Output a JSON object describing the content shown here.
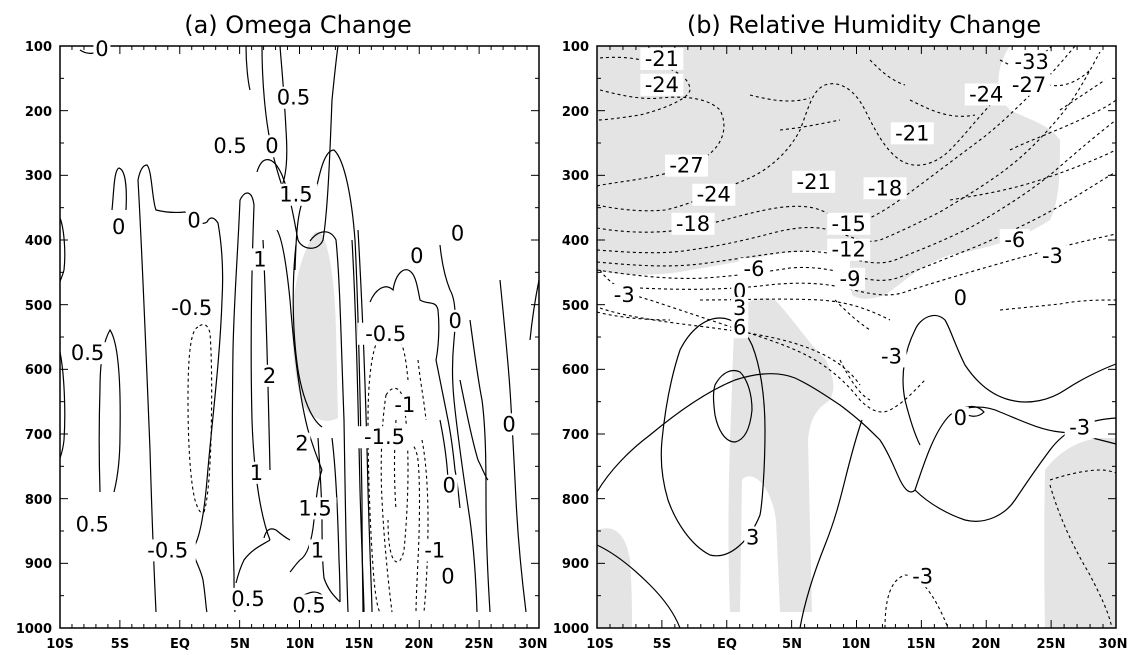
{
  "chart_data": [
    {
      "type": "contour",
      "title": "(a) Omega Change",
      "x_tick_labels": [
        "10S",
        "5S",
        "EQ",
        "5N",
        "10N",
        "15N",
        "20N",
        "25N",
        "30N"
      ],
      "x_range": [
        -10,
        30
      ],
      "y_tick_labels": [
        "100",
        "200",
        "300",
        "400",
        "500",
        "600",
        "700",
        "800",
        "900",
        "1000"
      ],
      "y_range": [
        100,
        1000
      ],
      "y_inverted": true,
      "contour_labels": [
        {
          "text": "0",
          "x": -6.5,
          "y": 105
        },
        {
          "text": "0.5",
          "x": 9.5,
          "y": 180
        },
        {
          "text": "0.5",
          "x": 4.2,
          "y": 255
        },
        {
          "text": "0",
          "x": 7.7,
          "y": 255
        },
        {
          "text": "1.5",
          "x": 9.7,
          "y": 330
        },
        {
          "text": "0",
          "x": -5.1,
          "y": 380
        },
        {
          "text": "0",
          "x": 1.2,
          "y": 370
        },
        {
          "text": "1",
          "x": 6.7,
          "y": 430
        },
        {
          "text": "-0.5",
          "x": 1.0,
          "y": 505
        },
        {
          "text": "0",
          "x": 19.8,
          "y": 425
        },
        {
          "text": "0",
          "x": 23.2,
          "y": 390
        },
        {
          "text": "0.5",
          "x": -7.7,
          "y": 575
        },
        {
          "text": "0",
          "x": 23.0,
          "y": 525
        },
        {
          "text": "-0.5",
          "x": 17.2,
          "y": 545
        },
        {
          "text": "2",
          "x": 7.5,
          "y": 610
        },
        {
          "text": "-1",
          "x": 18.8,
          "y": 655
        },
        {
          "text": "0",
          "x": 27.5,
          "y": 685
        },
        {
          "text": "-1.5",
          "x": 17.1,
          "y": 705
        },
        {
          "text": "2",
          "x": 10.2,
          "y": 715
        },
        {
          "text": "0",
          "x": 22.5,
          "y": 780
        },
        {
          "text": "1",
          "x": 6.4,
          "y": 760
        },
        {
          "text": "1.5",
          "x": 11.3,
          "y": 815
        },
        {
          "text": "0.5",
          "x": -7.3,
          "y": 840
        },
        {
          "text": "-0.5",
          "x": -1.0,
          "y": 880
        },
        {
          "text": "1",
          "x": 11.5,
          "y": 880
        },
        {
          "text": "-1",
          "x": 21.3,
          "y": 880
        },
        {
          "text": "0",
          "x": 22.4,
          "y": 920
        },
        {
          "text": "0.5",
          "x": 5.7,
          "y": 955
        },
        {
          "text": "0.5",
          "x": 10.8,
          "y": 965
        }
      ]
    },
    {
      "type": "contour",
      "title": "(b) Relative Humidity Change",
      "x_tick_labels": [
        "10S",
        "5S",
        "EQ",
        "5N",
        "10N",
        "15N",
        "20N",
        "25N",
        "30N"
      ],
      "x_range": [
        -10,
        30
      ],
      "y_tick_labels": [
        "100",
        "200",
        "300",
        "400",
        "500",
        "600",
        "700",
        "800",
        "900",
        "1000"
      ],
      "y_range": [
        100,
        1000
      ],
      "y_inverted": true,
      "contour_labels": [
        {
          "text": "-21",
          "x": -5.0,
          "y": 120
        },
        {
          "text": "-24",
          "x": -5.0,
          "y": 160
        },
        {
          "text": "-33",
          "x": 23.5,
          "y": 125
        },
        {
          "text": "-27",
          "x": 23.3,
          "y": 160
        },
        {
          "text": "-24",
          "x": 20.0,
          "y": 175
        },
        {
          "text": "-21",
          "x": 14.3,
          "y": 235
        },
        {
          "text": "-27",
          "x": -3.1,
          "y": 285
        },
        {
          "text": "-21",
          "x": 6.7,
          "y": 310
        },
        {
          "text": "-18",
          "x": 12.2,
          "y": 320
        },
        {
          "text": "-24",
          "x": -1.0,
          "y": 330
        },
        {
          "text": "-18",
          "x": -2.6,
          "y": 375
        },
        {
          "text": "-15",
          "x": 9.4,
          "y": 375
        },
        {
          "text": "-6",
          "x": 22.2,
          "y": 400
        },
        {
          "text": "-12",
          "x": 9.4,
          "y": 415
        },
        {
          "text": "-3",
          "x": 25.1,
          "y": 425
        },
        {
          "text": "-6",
          "x": 2.1,
          "y": 445
        },
        {
          "text": "-9",
          "x": 9.5,
          "y": 460
        },
        {
          "text": "-3",
          "x": -7.9,
          "y": 485
        },
        {
          "text": "0",
          "x": 1.0,
          "y": 480
        },
        {
          "text": "0",
          "x": 18.0,
          "y": 490
        },
        {
          "text": "3",
          "x": 1.0,
          "y": 505
        },
        {
          "text": "6",
          "x": 1.0,
          "y": 535
        },
        {
          "text": "-3",
          "x": 12.7,
          "y": 580
        },
        {
          "text": "0",
          "x": 18.0,
          "y": 675
        },
        {
          "text": "-3",
          "x": 27.2,
          "y": 690
        },
        {
          "text": "3",
          "x": 2.0,
          "y": 860
        },
        {
          "text": "-3",
          "x": 15.1,
          "y": 920
        }
      ]
    }
  ]
}
